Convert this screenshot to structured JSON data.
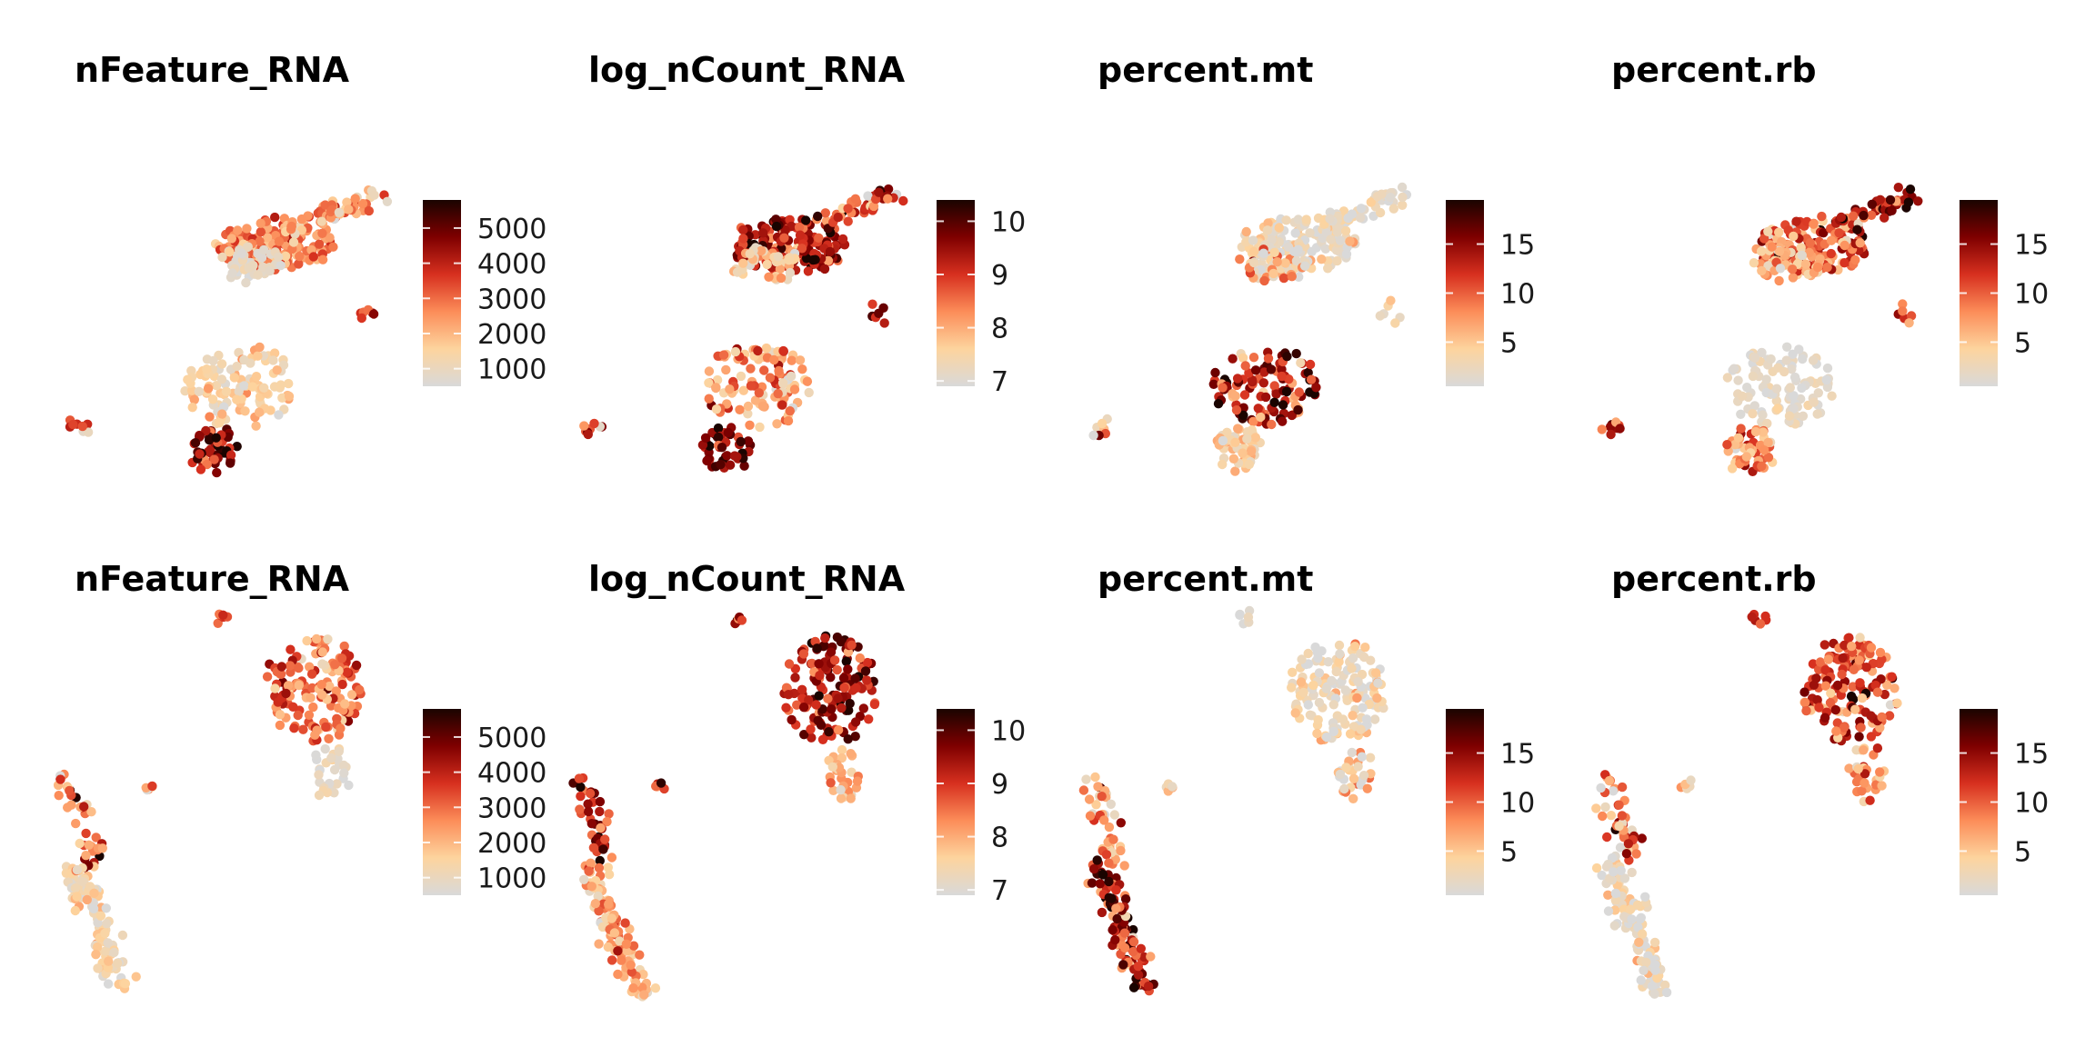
{
  "colors": {
    "scale": [
      "#d9d9d9",
      "#fdd49e",
      "#fc8d59",
      "#d7301f",
      "#7f0000",
      "#1a0400"
    ],
    "point_outline": "none",
    "background": "#ffffff"
  },
  "chart_data": [
    {
      "type": "scatter",
      "row": 1,
      "col": 1,
      "title": "nFeature_RNA",
      "legend": {
        "range": [
          500,
          5800
        ],
        "ticks": [
          1000,
          2000,
          3000,
          4000,
          5000
        ],
        "tick_labels": [
          "1000",
          "2000",
          "3000",
          "4000",
          "5000"
        ]
      },
      "clusters": [
        {
          "x": [
            0.55,
            0.95
          ],
          "y": [
            -0.15,
            0.15
          ],
          "n": 160,
          "shape": "blob",
          "value_mean": 2700,
          "value_sd": 650
        },
        {
          "x": [
            0.55,
            0.78
          ],
          "y": [
            -0.2,
            0.0
          ],
          "n": 45,
          "shape": "blob",
          "value_mean": 800,
          "value_sd": 250
        },
        {
          "x": [
            0.85,
            1.1
          ],
          "y": [
            0.12,
            0.28
          ],
          "n": 50,
          "shape": "streak",
          "value_mean": 2400,
          "value_sd": 900
        },
        {
          "x": [
            1.02,
            1.1
          ],
          "y": [
            -0.45,
            -0.3
          ],
          "n": 6,
          "shape": "blob",
          "value_mean": 3500,
          "value_sd": 800
        },
        {
          "x": [
            0.45,
            0.82
          ],
          "y": [
            -0.55,
            -1.0
          ],
          "n": 110,
          "shape": "blob",
          "value_mean": 1500,
          "value_sd": 500
        },
        {
          "x": [
            0.45,
            0.62
          ],
          "y": [
            -1.0,
            -1.25
          ],
          "n": 50,
          "shape": "blob",
          "value_mean": 4300,
          "value_sd": 900
        },
        {
          "x": [
            0.02,
            0.1
          ],
          "y": [
            -0.95,
            -1.05
          ],
          "n": 8,
          "shape": "blob",
          "value_mean": 3000,
          "value_sd": 1000
        }
      ]
    },
    {
      "type": "scatter",
      "row": 1,
      "col": 2,
      "title": "log_nCount_RNA",
      "legend": {
        "range": [
          6.9,
          10.4
        ],
        "ticks": [
          7,
          8,
          9,
          10
        ],
        "tick_labels": [
          "7",
          "8",
          "9",
          "10"
        ]
      },
      "clusters": [
        {
          "x": [
            0.55,
            0.95
          ],
          "y": [
            -0.15,
            0.15
          ],
          "n": 160,
          "shape": "blob",
          "value_mean": 9.4,
          "value_sd": 0.6
        },
        {
          "x": [
            0.55,
            0.78
          ],
          "y": [
            -0.2,
            0.0
          ],
          "n": 45,
          "shape": "blob",
          "value_mean": 7.6,
          "value_sd": 0.4
        },
        {
          "x": [
            0.85,
            1.1
          ],
          "y": [
            0.12,
            0.28
          ],
          "n": 50,
          "shape": "streak",
          "value_mean": 8.8,
          "value_sd": 0.8
        },
        {
          "x": [
            1.02,
            1.1
          ],
          "y": [
            -0.45,
            -0.3
          ],
          "n": 6,
          "shape": "blob",
          "value_mean": 9.5,
          "value_sd": 0.5
        },
        {
          "x": [
            0.45,
            0.82
          ],
          "y": [
            -0.55,
            -1.0
          ],
          "n": 110,
          "shape": "blob",
          "value_mean": 8.2,
          "value_sd": 0.6
        },
        {
          "x": [
            0.45,
            0.62
          ],
          "y": [
            -1.0,
            -1.25
          ],
          "n": 50,
          "shape": "blob",
          "value_mean": 9.7,
          "value_sd": 0.5
        },
        {
          "x": [
            0.02,
            0.1
          ],
          "y": [
            -0.95,
            -1.05
          ],
          "n": 8,
          "shape": "blob",
          "value_mean": 9.0,
          "value_sd": 0.8
        }
      ]
    },
    {
      "type": "scatter",
      "row": 1,
      "col": 3,
      "title": "percent.mt",
      "legend": {
        "range": [
          0.5,
          19.5
        ],
        "ticks": [
          5,
          10,
          15
        ],
        "tick_labels": [
          "5",
          "10",
          "15"
        ]
      },
      "clusters": [
        {
          "x": [
            0.55,
            0.95
          ],
          "y": [
            -0.15,
            0.15
          ],
          "n": 160,
          "shape": "blob",
          "value_mean": 2.5,
          "value_sd": 2.0
        },
        {
          "x": [
            0.55,
            0.78
          ],
          "y": [
            -0.2,
            0.0
          ],
          "n": 45,
          "shape": "blob",
          "value_mean": 4.5,
          "value_sd": 4.0
        },
        {
          "x": [
            0.85,
            1.1
          ],
          "y": [
            0.12,
            0.28
          ],
          "n": 50,
          "shape": "streak",
          "value_mean": 2.0,
          "value_sd": 1.5
        },
        {
          "x": [
            1.02,
            1.1
          ],
          "y": [
            -0.45,
            -0.3
          ],
          "n": 6,
          "shape": "blob",
          "value_mean": 2.0,
          "value_sd": 1.0
        },
        {
          "x": [
            0.45,
            0.82
          ],
          "y": [
            -0.55,
            -1.0
          ],
          "n": 110,
          "shape": "blob",
          "value_mean": 13.0,
          "value_sd": 4.5
        },
        {
          "x": [
            0.45,
            0.62
          ],
          "y": [
            -1.0,
            -1.25
          ],
          "n": 50,
          "shape": "blob",
          "value_mean": 4.5,
          "value_sd": 2.0
        },
        {
          "x": [
            0.02,
            0.1
          ],
          "y": [
            -0.95,
            -1.05
          ],
          "n": 8,
          "shape": "blob",
          "value_mean": 8.0,
          "value_sd": 5.0
        }
      ]
    },
    {
      "type": "scatter",
      "row": 1,
      "col": 4,
      "title": "percent.rb",
      "legend": {
        "range": [
          0.5,
          19.5
        ],
        "ticks": [
          5,
          10,
          15
        ],
        "tick_labels": [
          "5",
          "10",
          "15"
        ]
      },
      "clusters": [
        {
          "x": [
            0.55,
            0.95
          ],
          "y": [
            -0.15,
            0.15
          ],
          "n": 160,
          "shape": "blob",
          "value_mean": 9.5,
          "value_sd": 4.0
        },
        {
          "x": [
            0.55,
            0.78
          ],
          "y": [
            -0.2,
            0.0
          ],
          "n": 45,
          "shape": "blob",
          "value_mean": 5.0,
          "value_sd": 2.5
        },
        {
          "x": [
            0.85,
            1.1
          ],
          "y": [
            0.12,
            0.28
          ],
          "n": 50,
          "shape": "streak",
          "value_mean": 13.0,
          "value_sd": 4.0
        },
        {
          "x": [
            1.02,
            1.1
          ],
          "y": [
            -0.45,
            -0.3
          ],
          "n": 6,
          "shape": "blob",
          "value_mean": 10.0,
          "value_sd": 3.0
        },
        {
          "x": [
            0.45,
            0.82
          ],
          "y": [
            -0.55,
            -1.0
          ],
          "n": 110,
          "shape": "blob",
          "value_mean": 1.5,
          "value_sd": 1.0
        },
        {
          "x": [
            0.45,
            0.62
          ],
          "y": [
            -1.0,
            -1.25
          ],
          "n": 50,
          "shape": "blob",
          "value_mean": 8.0,
          "value_sd": 3.0
        },
        {
          "x": [
            0.02,
            0.1
          ],
          "y": [
            -0.95,
            -1.05
          ],
          "n": 8,
          "shape": "blob",
          "value_mean": 12.0,
          "value_sd": 4.0
        }
      ]
    },
    {
      "type": "scatter",
      "row": 2,
      "col": 1,
      "title": "nFeature_RNA",
      "legend": {
        "range": [
          500,
          5800
        ],
        "ticks": [
          1000,
          2000,
          3000,
          4000,
          5000
        ],
        "tick_labels": [
          "1000",
          "2000",
          "3000",
          "4000",
          "5000"
        ]
      },
      "clusters": [
        {
          "x": [
            0.72,
            1.05
          ],
          "y": [
            0.05,
            0.65
          ],
          "n": 150,
          "shape": "blob",
          "value_mean": 2900,
          "value_sd": 800
        },
        {
          "x": [
            0.88,
            1.0
          ],
          "y": [
            -0.25,
            0.05
          ],
          "n": 30,
          "shape": "blob",
          "value_mean": 900,
          "value_sd": 300
        },
        {
          "x": [
            0.55,
            0.58
          ],
          "y": [
            0.72,
            0.78
          ],
          "n": 6,
          "shape": "blob",
          "value_mean": 3500,
          "value_sd": 800
        },
        {
          "x": [
            0.28,
            0.32
          ],
          "y": [
            -0.2,
            -0.15
          ],
          "n": 5,
          "shape": "blob",
          "value_mean": 3000,
          "value_sd": 900
        },
        {
          "x": [
            0.02,
            0.12
          ],
          "y": [
            -0.1,
            -0.6
          ],
          "n": 40,
          "shape": "streak",
          "value_mean": 3300,
          "value_sd": 1200
        },
        {
          "x": [
            0.05,
            0.22
          ],
          "y": [
            -0.6,
            -1.3
          ],
          "n": 110,
          "shape": "streak",
          "value_mean": 1300,
          "value_sd": 500
        }
      ]
    },
    {
      "type": "scatter",
      "row": 2,
      "col": 2,
      "title": "log_nCount_RNA",
      "legend": {
        "range": [
          6.9,
          10.4
        ],
        "ticks": [
          7,
          8,
          9,
          10
        ],
        "tick_labels": [
          "7",
          "8",
          "9",
          "10"
        ]
      },
      "clusters": [
        {
          "x": [
            0.72,
            1.05
          ],
          "y": [
            0.05,
            0.65
          ],
          "n": 150,
          "shape": "blob",
          "value_mean": 9.3,
          "value_sd": 0.6
        },
        {
          "x": [
            0.88,
            1.0
          ],
          "y": [
            -0.25,
            0.05
          ],
          "n": 30,
          "shape": "blob",
          "value_mean": 7.9,
          "value_sd": 0.4
        },
        {
          "x": [
            0.55,
            0.58
          ],
          "y": [
            0.72,
            0.78
          ],
          "n": 6,
          "shape": "blob",
          "value_mean": 9.5,
          "value_sd": 0.6
        },
        {
          "x": [
            0.28,
            0.32
          ],
          "y": [
            -0.2,
            -0.15
          ],
          "n": 5,
          "shape": "blob",
          "value_mean": 9.0,
          "value_sd": 0.7
        },
        {
          "x": [
            0.02,
            0.12
          ],
          "y": [
            -0.1,
            -0.6
          ],
          "n": 40,
          "shape": "streak",
          "value_mean": 9.4,
          "value_sd": 0.7
        },
        {
          "x": [
            0.05,
            0.22
          ],
          "y": [
            -0.6,
            -1.3
          ],
          "n": 110,
          "shape": "streak",
          "value_mean": 8.1,
          "value_sd": 0.5
        }
      ]
    },
    {
      "type": "scatter",
      "row": 2,
      "col": 3,
      "title": "percent.mt",
      "legend": {
        "range": [
          0.5,
          19.5
        ],
        "ticks": [
          5,
          10,
          15
        ],
        "tick_labels": [
          "5",
          "10",
          "15"
        ]
      },
      "clusters": [
        {
          "x": [
            0.72,
            1.05
          ],
          "y": [
            0.05,
            0.65
          ],
          "n": 150,
          "shape": "blob",
          "value_mean": 2.5,
          "value_sd": 2.0
        },
        {
          "x": [
            0.88,
            1.0
          ],
          "y": [
            -0.25,
            0.05
          ],
          "n": 30,
          "shape": "blob",
          "value_mean": 4.0,
          "value_sd": 3.5
        },
        {
          "x": [
            0.55,
            0.58
          ],
          "y": [
            0.72,
            0.78
          ],
          "n": 6,
          "shape": "blob",
          "value_mean": 1.5,
          "value_sd": 1.0
        },
        {
          "x": [
            0.28,
            0.32
          ],
          "y": [
            -0.2,
            -0.15
          ],
          "n": 5,
          "shape": "blob",
          "value_mean": 4.0,
          "value_sd": 2.0
        },
        {
          "x": [
            0.02,
            0.12
          ],
          "y": [
            -0.1,
            -0.6
          ],
          "n": 40,
          "shape": "streak",
          "value_mean": 7.0,
          "value_sd": 4.0
        },
        {
          "x": [
            0.05,
            0.22
          ],
          "y": [
            -0.6,
            -1.3
          ],
          "n": 110,
          "shape": "streak",
          "value_mean": 13.5,
          "value_sd": 4.5
        }
      ]
    },
    {
      "type": "scatter",
      "row": 2,
      "col": 4,
      "title": "percent.rb",
      "legend": {
        "range": [
          0.5,
          19.5
        ],
        "ticks": [
          5,
          10,
          15
        ],
        "tick_labels": [
          "5",
          "10",
          "15"
        ]
      },
      "clusters": [
        {
          "x": [
            0.72,
            1.05
          ],
          "y": [
            0.05,
            0.65
          ],
          "n": 150,
          "shape": "blob",
          "value_mean": 10.5,
          "value_sd": 3.5
        },
        {
          "x": [
            0.88,
            1.0
          ],
          "y": [
            -0.25,
            0.05
          ],
          "n": 30,
          "shape": "blob",
          "value_mean": 8.0,
          "value_sd": 3.0
        },
        {
          "x": [
            0.55,
            0.58
          ],
          "y": [
            0.72,
            0.78
          ],
          "n": 6,
          "shape": "blob",
          "value_mean": 13.0,
          "value_sd": 3.0
        },
        {
          "x": [
            0.28,
            0.32
          ],
          "y": [
            -0.2,
            -0.15
          ],
          "n": 5,
          "shape": "blob",
          "value_mean": 3.0,
          "value_sd": 2.0
        },
        {
          "x": [
            0.02,
            0.12
          ],
          "y": [
            -0.1,
            -0.6
          ],
          "n": 40,
          "shape": "streak",
          "value_mean": 9.0,
          "value_sd": 5.0
        },
        {
          "x": [
            0.05,
            0.22
          ],
          "y": [
            -0.6,
            -1.3
          ],
          "n": 110,
          "shape": "streak",
          "value_mean": 2.0,
          "value_sd": 2.0
        }
      ]
    }
  ]
}
